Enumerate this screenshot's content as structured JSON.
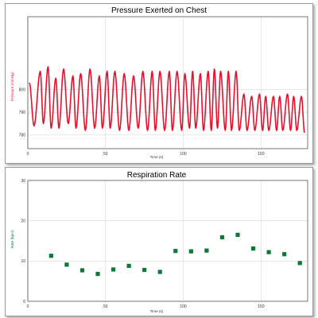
{
  "charts": [
    {
      "type": "line",
      "title": "Pressure Exerted on Chest",
      "xlabel": "Time (s)",
      "ylabel": "Pressure (mmHg)",
      "xlim": [
        0,
        180
      ],
      "ylim": [
        774,
        832
      ],
      "xticks": [
        0,
        50,
        100,
        150
      ],
      "yticks": [
        780,
        790,
        800
      ],
      "grid": true,
      "colors": {
        "series": "#e8102c",
        "ylabel": "#e8102c",
        "grid": "#d9d9d9",
        "axis": "#555555"
      },
      "series": [
        {
          "peaks": [
            [
              1,
              803
            ],
            [
              8,
              808
            ],
            [
              13,
              810
            ],
            [
              18,
              805
            ],
            [
              23,
              809
            ],
            [
              29,
              806
            ],
            [
              34,
              807
            ],
            [
              40,
              809
            ],
            [
              46,
              806
            ],
            [
              51,
              808
            ],
            [
              56,
              808
            ],
            [
              62,
              807
            ],
            [
              68,
              806
            ],
            [
              74,
              808
            ],
            [
              80,
              808
            ],
            [
              85,
              808
            ],
            [
              91,
              808
            ],
            [
              96,
              808
            ],
            [
              101,
              807
            ],
            [
              106,
              808
            ],
            [
              111,
              807
            ],
            [
              116,
              808
            ],
            [
              120,
              809
            ],
            [
              124,
              808
            ],
            [
              129,
              808
            ],
            [
              134,
              808
            ],
            [
              139,
              798
            ],
            [
              144,
              797
            ],
            [
              149,
              798
            ],
            [
              153,
              797
            ],
            [
              158,
              797
            ],
            [
              162,
              797
            ],
            [
              167,
              798
            ],
            [
              171,
              797
            ],
            [
              176,
              797
            ]
          ],
          "troughs": [
            [
              4,
              784
            ],
            [
              10,
              785
            ],
            [
              15,
              783
            ],
            [
              20,
              783
            ],
            [
              26,
              785
            ],
            [
              31,
              783
            ],
            [
              37,
              782
            ],
            [
              43,
              783
            ],
            [
              48,
              783
            ],
            [
              53,
              783
            ],
            [
              59,
              782
            ],
            [
              65,
              782
            ],
            [
              71,
              783
            ],
            [
              77,
              782
            ],
            [
              82,
              782
            ],
            [
              88,
              782
            ],
            [
              93,
              782
            ],
            [
              99,
              782
            ],
            [
              104,
              783
            ],
            [
              108,
              783
            ],
            [
              113,
              782
            ],
            [
              118,
              782
            ],
            [
              122,
              783
            ],
            [
              127,
              782
            ],
            [
              131,
              782
            ],
            [
              136,
              782
            ],
            [
              141,
              782
            ],
            [
              146,
              782
            ],
            [
              151,
              782
            ],
            [
              155,
              782
            ],
            [
              160,
              782
            ],
            [
              164,
              782
            ],
            [
              169,
              782
            ],
            [
              173,
              782
            ],
            [
              178,
              781
            ]
          ]
        }
      ]
    },
    {
      "type": "scatter",
      "title": "Respiration Rate",
      "xlabel": "Time (s)",
      "ylabel": "Rate (bpm)",
      "xlim": [
        0,
        180
      ],
      "ylim": [
        0,
        30
      ],
      "xticks": [
        0,
        50,
        100,
        150
      ],
      "yticks": [
        0,
        10,
        20,
        30
      ],
      "grid": true,
      "colors": {
        "series": "#0a7a3a",
        "ylabel": "#0a7a3a",
        "grid": "#d9d9d9",
        "axis": "#555555"
      },
      "series": [
        {
          "x": [
            15,
            25,
            35,
            45,
            55,
            65,
            75,
            85,
            95,
            105,
            115,
            125,
            135,
            145,
            155,
            165,
            175
          ],
          "y": [
            11.3,
            9.1,
            7.7,
            6.8,
            7.9,
            8.8,
            7.8,
            7.3,
            12.5,
            12.4,
            12.6,
            15.9,
            16.5,
            13.1,
            12.2,
            11.7,
            9.5
          ]
        }
      ]
    }
  ]
}
